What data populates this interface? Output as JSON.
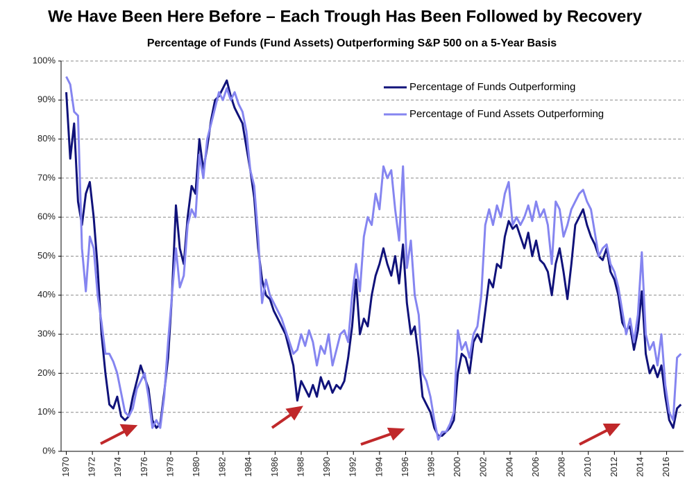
{
  "chart_data": {
    "type": "line",
    "title": "We Have Been Here Before – Each Trough Has Been Followed by Recovery",
    "subtitle": "Percentage of Funds (Fund Assets) Outperforming S&P 500 on a 5-Year Basis",
    "x": [
      1970.0,
      1970.3,
      1970.6,
      1970.9,
      1971.2,
      1971.5,
      1971.8,
      1972.1,
      1972.4,
      1972.7,
      1973.0,
      1973.3,
      1973.6,
      1973.9,
      1974.2,
      1974.5,
      1974.8,
      1975.1,
      1975.4,
      1975.7,
      1976.0,
      1976.3,
      1976.6,
      1976.9,
      1977.2,
      1977.5,
      1977.8,
      1978.1,
      1978.4,
      1978.7,
      1979.0,
      1979.3,
      1979.6,
      1979.9,
      1980.2,
      1980.5,
      1980.8,
      1981.1,
      1981.4,
      1981.7,
      1982.0,
      1982.3,
      1982.6,
      1982.9,
      1983.2,
      1983.5,
      1983.8,
      1984.1,
      1984.4,
      1984.7,
      1985.0,
      1985.3,
      1985.6,
      1985.9,
      1986.2,
      1986.5,
      1986.8,
      1987.1,
      1987.4,
      1987.7,
      1988.0,
      1988.3,
      1988.6,
      1988.9,
      1989.2,
      1989.5,
      1989.8,
      1990.1,
      1990.4,
      1990.7,
      1991.0,
      1991.3,
      1991.6,
      1991.9,
      1992.2,
      1992.5,
      1992.8,
      1993.1,
      1993.4,
      1993.7,
      1994.0,
      1994.3,
      1994.6,
      1994.9,
      1995.2,
      1995.5,
      1995.8,
      1996.1,
      1996.4,
      1996.7,
      1997.0,
      1997.3,
      1997.6,
      1997.9,
      1998.2,
      1998.5,
      1998.8,
      1999.1,
      1999.4,
      1999.7,
      2000.0,
      2000.3,
      2000.6,
      2000.9,
      2001.2,
      2001.5,
      2001.8,
      2002.1,
      2002.4,
      2002.7,
      2003.0,
      2003.3,
      2003.6,
      2003.9,
      2004.2,
      2004.5,
      2004.8,
      2005.1,
      2005.4,
      2005.7,
      2006.0,
      2006.3,
      2006.6,
      2006.9,
      2007.2,
      2007.5,
      2007.8,
      2008.1,
      2008.4,
      2008.7,
      2009.0,
      2009.3,
      2009.6,
      2009.9,
      2010.2,
      2010.5,
      2010.8,
      2011.1,
      2011.4,
      2011.7,
      2012.0,
      2012.3,
      2012.6,
      2012.9,
      2013.2,
      2013.5,
      2013.8,
      2014.1,
      2014.4,
      2014.7,
      2015.0,
      2015.3,
      2015.6,
      2015.9,
      2016.2,
      2016.5,
      2016.8,
      2017.1
    ],
    "series": [
      {
        "name": "Percentage of Funds Outperforming",
        "color": "#10127a",
        "values": [
          92,
          75,
          84,
          64,
          58,
          66,
          69,
          60,
          47,
          30,
          20,
          12,
          11,
          14,
          9,
          8,
          9,
          14,
          18,
          22,
          19,
          16,
          8,
          6,
          7,
          15,
          24,
          40,
          63,
          52,
          48,
          60,
          68,
          66,
          80,
          72,
          78,
          85,
          90,
          91,
          93,
          95,
          91,
          88,
          86,
          84,
          78,
          72,
          65,
          52,
          44,
          40,
          39,
          36,
          34,
          32,
          30,
          26,
          22,
          13,
          18,
          16,
          14,
          17,
          14,
          19,
          16,
          18,
          15,
          17,
          16,
          18,
          24,
          32,
          44,
          30,
          34,
          32,
          40,
          45,
          48,
          52,
          48,
          45,
          50,
          43,
          53,
          38,
          30,
          32,
          24,
          14,
          12,
          10,
          6,
          4,
          4,
          5,
          6,
          8,
          20,
          25,
          24,
          20,
          28,
          30,
          28,
          36,
          44,
          42,
          48,
          47,
          55,
          59,
          57,
          58,
          55,
          52,
          56,
          50,
          54,
          49,
          48,
          46,
          40,
          48,
          52,
          46,
          39,
          48,
          58,
          60,
          62,
          58,
          55,
          53,
          50,
          49,
          52,
          46,
          44,
          40,
          33,
          31,
          32,
          26,
          31,
          41,
          25,
          20,
          22,
          19,
          22,
          14,
          8,
          6,
          11,
          12
        ]
      },
      {
        "name": "Percentage of Fund Assets Outperforming",
        "color": "#8585f0",
        "values": [
          96,
          94,
          87,
          86,
          52,
          41,
          55,
          52,
          40,
          33,
          25,
          25,
          23,
          20,
          15,
          10,
          9,
          11,
          16,
          18,
          20,
          14,
          6,
          8,
          6,
          14,
          28,
          40,
          52,
          42,
          45,
          58,
          62,
          60,
          76,
          70,
          80,
          84,
          88,
          92,
          90,
          93,
          90,
          92,
          89,
          87,
          82,
          72,
          68,
          55,
          38,
          44,
          40,
          38,
          36,
          34,
          31,
          28,
          25,
          26,
          30,
          27,
          31,
          28,
          22,
          27,
          25,
          30,
          22,
          26,
          30,
          31,
          28,
          40,
          48,
          41,
          55,
          60,
          58,
          66,
          62,
          73,
          70,
          72,
          62,
          54,
          73,
          47,
          54,
          40,
          35,
          20,
          18,
          14,
          8,
          3,
          5,
          5,
          7,
          10,
          31,
          26,
          28,
          24,
          30,
          32,
          40,
          58,
          62,
          58,
          63,
          60,
          66,
          69,
          58,
          60,
          58,
          60,
          63,
          59,
          64,
          60,
          62,
          58,
          48,
          64,
          62,
          55,
          58,
          62,
          64,
          66,
          67,
          64,
          62,
          56,
          50,
          52,
          53,
          48,
          46,
          42,
          36,
          30,
          34,
          28,
          35,
          51,
          30,
          26,
          28,
          22,
          30,
          17,
          10,
          8,
          24,
          25
        ]
      }
    ],
    "xlim": [
      1969.6,
      2017.3
    ],
    "xticks": [
      1970,
      1972,
      1974,
      1976,
      1978,
      1980,
      1982,
      1984,
      1986,
      1988,
      1990,
      1992,
      1994,
      1996,
      1998,
      2000,
      2002,
      2004,
      2006,
      2008,
      2010,
      2012,
      2014,
      2016
    ],
    "ylim": [
      0,
      100
    ],
    "yticks": [
      {
        "value": 0,
        "label": "0%"
      },
      {
        "value": 10,
        "label": "10%"
      },
      {
        "value": 20,
        "label": "20%"
      },
      {
        "value": 30,
        "label": "30%"
      },
      {
        "value": 40,
        "label": "40%"
      },
      {
        "value": 50,
        "label": "50%"
      },
      {
        "value": 60,
        "label": "60%"
      },
      {
        "value": 70,
        "label": "70%"
      },
      {
        "value": 80,
        "label": "80%"
      },
      {
        "value": 90,
        "label": "90%"
      },
      {
        "value": 100,
        "label": "100%"
      }
    ],
    "grid": true,
    "legend": "upper right"
  }
}
